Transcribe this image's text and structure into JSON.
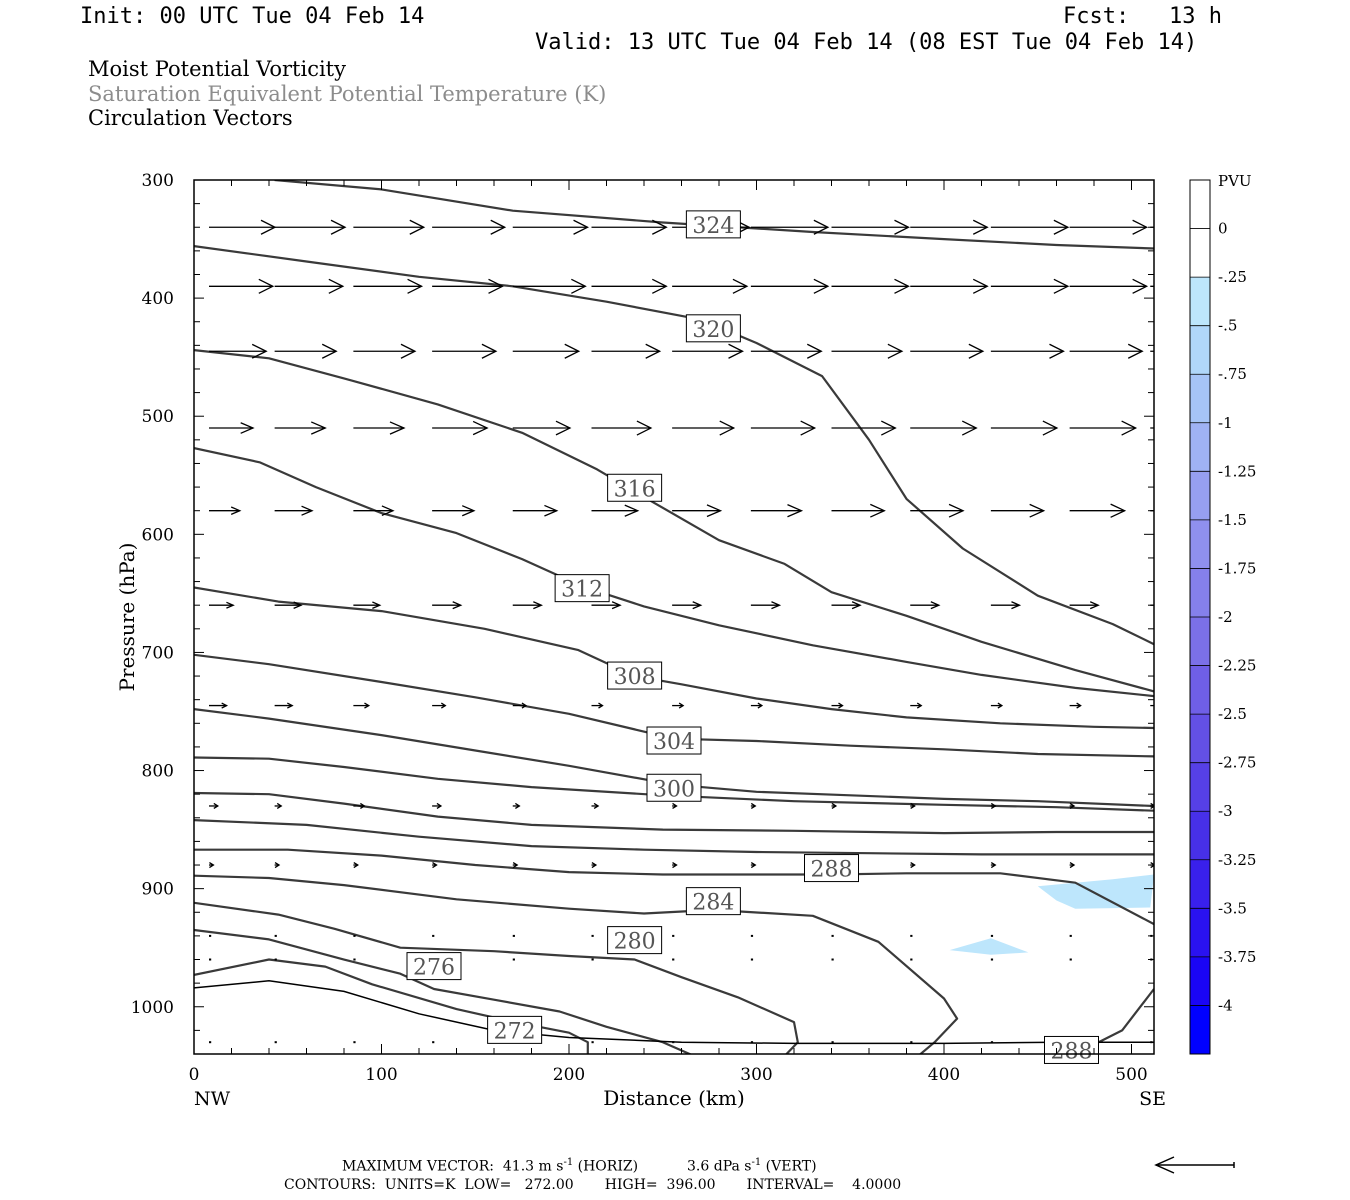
{
  "header": {
    "init": "Init: 00 UTC Tue 04 Feb 14",
    "fcst": "Fcst:   13 h",
    "valid": "Valid: 13 UTC Tue 04 Feb 14 (08 EST Tue 04 Feb 14)",
    "title_lines": [
      "Moist Potential Vorticity",
      "Saturation Equivalent Potential Temperature (K)",
      "Circulation Vectors"
    ]
  },
  "footer": {
    "max_vector_label": "MAXIMUM VECTOR:",
    "max_vector_horiz": "41.3",
    "horiz_units": "m s",
    "horiz_tag": "(HORIZ)",
    "max_vector_vert": "3.6",
    "vert_units": "dPa s",
    "vert_tag": "(VERT)",
    "exponent": "-1",
    "contours_line": "CONTOURS:  UNITS=K  LOW=   272.00       HIGH=  396.00       INTERVAL=    4.0000"
  },
  "chart_data": {
    "type": "contour",
    "xlabel": "Distance (km)",
    "ylabel": "Pressure (hPa)",
    "xlim": [
      0,
      512
    ],
    "ylim": [
      1040,
      300
    ],
    "x_ticks": [
      0,
      100,
      200,
      300,
      400,
      500
    ],
    "y_ticks": [
      300,
      400,
      500,
      600,
      700,
      800,
      900,
      1000
    ],
    "x_endpoints": [
      "NW",
      "SE"
    ],
    "contour_color": "#3a3a3a",
    "contours": [
      {
        "level": 324,
        "label": "324",
        "label_at": [
          277,
          338
        ],
        "points": [
          [
            43,
            300
          ],
          [
            100,
            308
          ],
          [
            170,
            326
          ],
          [
            250,
            336
          ],
          [
            330,
            344
          ],
          [
            400,
            350
          ],
          [
            460,
            355
          ],
          [
            512,
            358
          ]
        ]
      },
      {
        "level": 320,
        "label": "320",
        "label_at": [
          277,
          426
        ],
        "points": [
          [
            0,
            356
          ],
          [
            60,
            369
          ],
          [
            120,
            382
          ],
          [
            170,
            390
          ],
          [
            220,
            403
          ],
          [
            270,
            418
          ],
          [
            300,
            438
          ],
          [
            335,
            466
          ],
          [
            360,
            520
          ],
          [
            380,
            570
          ],
          [
            410,
            612
          ],
          [
            450,
            652
          ],
          [
            490,
            676
          ],
          [
            512,
            693
          ]
        ]
      },
      {
        "level": 316,
        "label": "316",
        "label_at": [
          235,
          561
        ],
        "points": [
          [
            0,
            444
          ],
          [
            40,
            451
          ],
          [
            80,
            468
          ],
          [
            130,
            490
          ],
          [
            175,
            514
          ],
          [
            215,
            545
          ],
          [
            245,
            573
          ],
          [
            280,
            605
          ],
          [
            315,
            625
          ],
          [
            340,
            649
          ],
          [
            380,
            669
          ],
          [
            420,
            691
          ],
          [
            470,
            715
          ],
          [
            512,
            733
          ]
        ]
      },
      {
        "level": 312,
        "label": "312",
        "label_at": [
          207,
          646
        ],
        "points": [
          [
            0,
            527
          ],
          [
            35,
            539
          ],
          [
            65,
            560
          ],
          [
            100,
            582
          ],
          [
            140,
            599
          ],
          [
            175,
            621
          ],
          [
            207,
            644
          ],
          [
            240,
            661
          ],
          [
            280,
            677
          ],
          [
            330,
            694
          ],
          [
            380,
            708
          ],
          [
            420,
            719
          ],
          [
            470,
            730
          ],
          [
            512,
            737
          ]
        ]
      },
      {
        "level": 308,
        "label": "308",
        "label_at": [
          235,
          720
        ],
        "points": [
          [
            0,
            645
          ],
          [
            45,
            657
          ],
          [
            100,
            665
          ],
          [
            155,
            680
          ],
          [
            205,
            698
          ],
          [
            235,
            720
          ],
          [
            260,
            727
          ],
          [
            300,
            739
          ],
          [
            340,
            748
          ],
          [
            380,
            755
          ],
          [
            430,
            760
          ],
          [
            480,
            763
          ],
          [
            512,
            764
          ]
        ]
      },
      {
        "level": 304,
        "label": "304",
        "label_at": [
          256,
          775
        ],
        "points": [
          [
            0,
            702
          ],
          [
            40,
            710
          ],
          [
            100,
            725
          ],
          [
            150,
            738
          ],
          [
            200,
            752
          ],
          [
            256,
            773
          ],
          [
            300,
            775
          ],
          [
            350,
            779
          ],
          [
            400,
            782
          ],
          [
            450,
            786
          ],
          [
            512,
            788
          ]
        ]
      },
      {
        "level": 300,
        "label": "300",
        "label_at": [
          256,
          815
        ],
        "points": [
          [
            0,
            748
          ],
          [
            40,
            756
          ],
          [
            100,
            770
          ],
          [
            150,
            783
          ],
          [
            200,
            796
          ],
          [
            256,
            812
          ],
          [
            300,
            818
          ],
          [
            350,
            821
          ],
          [
            400,
            824
          ],
          [
            450,
            826
          ],
          [
            512,
            830
          ]
        ]
      },
      {
        "level": 296,
        "label": "",
        "label_at": null,
        "points": [
          [
            0,
            789
          ],
          [
            40,
            790
          ],
          [
            80,
            797
          ],
          [
            130,
            807
          ],
          [
            180,
            814
          ],
          [
            250,
            821
          ],
          [
            320,
            826
          ],
          [
            400,
            829
          ],
          [
            460,
            831
          ],
          [
            512,
            834
          ]
        ]
      },
      {
        "level": 292,
        "label": "",
        "label_at": null,
        "points": [
          [
            0,
            819
          ],
          [
            40,
            820
          ],
          [
            80,
            828
          ],
          [
            130,
            839
          ],
          [
            180,
            846
          ],
          [
            250,
            850
          ],
          [
            320,
            851
          ],
          [
            400,
            853
          ],
          [
            460,
            852
          ],
          [
            512,
            852
          ]
        ]
      },
      {
        "level": 292,
        "label": "",
        "label_at": null,
        "points": [
          [
            0,
            842
          ],
          [
            60,
            846
          ],
          [
            120,
            856
          ],
          [
            180,
            864
          ],
          [
            240,
            867
          ],
          [
            300,
            869
          ],
          [
            360,
            870
          ],
          [
            420,
            871
          ],
          [
            512,
            871
          ]
        ]
      },
      {
        "level": 288,
        "label": "288",
        "label_at": [
          340,
          883
        ],
        "points": [
          [
            0,
            867
          ],
          [
            50,
            867
          ],
          [
            100,
            872
          ],
          [
            150,
            880
          ],
          [
            200,
            886
          ],
          [
            250,
            888
          ],
          [
            300,
            888
          ],
          [
            340,
            888
          ],
          [
            380,
            887
          ],
          [
            430,
            887
          ],
          [
            470,
            895
          ],
          [
            512,
            930
          ]
        ]
      },
      {
        "level": 284,
        "label": "284",
        "label_at": [
          277,
          911
        ],
        "points": [
          [
            0,
            889
          ],
          [
            40,
            891
          ],
          [
            80,
            897
          ],
          [
            140,
            909
          ],
          [
            200,
            917
          ],
          [
            240,
            921
          ],
          [
            277,
            918
          ],
          [
            330,
            923
          ],
          [
            365,
            945
          ],
          [
            400,
            993
          ],
          [
            407,
            1010
          ],
          [
            395,
            1030
          ],
          [
            380,
            1050
          ],
          [
            360,
            1063
          ]
        ]
      },
      {
        "level": 280,
        "label": "280",
        "label_at": [
          235,
          944
        ],
        "points": [
          [
            0,
            912
          ],
          [
            45,
            922
          ],
          [
            75,
            934
          ],
          [
            110,
            950
          ],
          [
            160,
            953
          ],
          [
            200,
            957
          ],
          [
            235,
            960
          ],
          [
            260,
            975
          ],
          [
            290,
            992
          ],
          [
            320,
            1013
          ],
          [
            322,
            1030
          ],
          [
            310,
            1050
          ],
          [
            300,
            1063
          ]
        ]
      },
      {
        "level": 276,
        "label": "276",
        "label_at": [
          128,
          966
        ],
        "points": [
          [
            0,
            935
          ],
          [
            40,
            943
          ],
          [
            80,
            960
          ],
          [
            110,
            972
          ],
          [
            128,
            985
          ],
          [
            160,
            994
          ],
          [
            195,
            1004
          ],
          [
            220,
            1017
          ],
          [
            250,
            1030
          ],
          [
            270,
            1044
          ],
          [
            268,
            1060
          ]
        ]
      },
      {
        "level": 272,
        "label": "272",
        "label_at": [
          171,
          1020
        ],
        "points": [
          [
            0,
            973
          ],
          [
            40,
            960
          ],
          [
            70,
            966
          ],
          [
            95,
            981
          ],
          [
            140,
            1002
          ],
          [
            171,
            1013
          ],
          [
            200,
            1022
          ],
          [
            210,
            1030
          ],
          [
            210,
            1042
          ]
        ]
      },
      {
        "level": 288,
        "label": "288",
        "label_at": [
          468,
          1037
        ],
        "points": [
          [
            440,
            1063
          ],
          [
            470,
            1040
          ],
          [
            495,
            1020
          ],
          [
            512,
            985
          ]
        ]
      }
    ],
    "surface_boundary": [
      [
        0,
        984
      ],
      [
        40,
        978
      ],
      [
        80,
        987
      ],
      [
        120,
        1006
      ],
      [
        160,
        1020
      ],
      [
        200,
        1026
      ],
      [
        260,
        1030
      ],
      [
        320,
        1031
      ],
      [
        400,
        1031
      ],
      [
        460,
        1030
      ],
      [
        512,
        1030
      ]
    ],
    "shaded_regions": [
      {
        "value": -0.25,
        "polygon": [
          [
            450,
            898
          ],
          [
            490,
            892
          ],
          [
            512,
            888
          ],
          [
            510,
            916
          ],
          [
            470,
            917
          ],
          [
            460,
            910
          ]
        ]
      },
      {
        "value": -0.25,
        "polygon": [
          [
            403,
            952
          ],
          [
            425,
            942
          ],
          [
            445,
            954
          ],
          [
            425,
            956
          ]
        ]
      }
    ],
    "vectors": {
      "x_positions": [
        8,
        43,
        85,
        127,
        170,
        212,
        255,
        297,
        340,
        382,
        425,
        467,
        510
      ],
      "pressure_levels": [
        340,
        390,
        445,
        510,
        580,
        660,
        745,
        830,
        880,
        940,
        960,
        1030
      ],
      "u_m_s": [
        [
          30,
          32,
          32,
          33,
          34,
          34,
          35,
          35,
          35,
          35,
          35,
          35,
          36
        ],
        [
          29,
          31,
          31,
          32,
          33,
          34,
          34,
          35,
          35,
          35,
          35,
          35,
          36
        ],
        [
          26,
          28,
          28,
          29,
          30,
          31,
          32,
          32,
          32,
          33,
          33,
          33,
          34
        ],
        [
          20,
          23,
          23,
          25,
          26,
          27,
          28,
          29,
          29,
          30,
          30,
          30,
          31
        ],
        [
          14,
          17,
          18,
          19,
          20,
          21,
          22,
          23,
          24,
          24,
          24,
          25,
          25
        ],
        [
          11,
          12,
          12,
          13,
          13,
          13,
          13,
          13,
          13,
          13,
          13,
          13,
          13
        ],
        [
          8,
          8,
          7,
          6,
          6,
          5,
          5,
          5,
          5,
          5,
          5,
          5,
          5
        ],
        [
          4,
          3,
          5,
          4,
          3,
          3,
          2,
          2,
          2,
          2,
          2,
          2,
          2
        ],
        [
          2,
          2,
          2,
          2,
          2,
          2,
          2,
          2,
          2,
          2,
          2,
          2,
          2
        ],
        [
          1,
          1,
          1,
          1,
          1,
          1,
          1,
          1,
          1,
          1,
          1,
          1,
          1
        ],
        [
          1,
          1,
          1,
          1,
          1,
          1,
          1,
          1,
          1,
          1,
          1,
          1,
          1
        ],
        [
          1,
          1,
          1,
          1,
          1,
          1,
          1,
          1,
          1,
          1,
          1,
          1,
          1
        ]
      ]
    },
    "colorbar": {
      "title": "PVU",
      "labels": [
        "0",
        "-.25",
        "-.5",
        "-.75",
        "-1",
        "-1.25",
        "-1.5",
        "-1.75",
        "-2",
        "-2.25",
        "-2.5",
        "-2.75",
        "-3",
        "-3.25",
        "-3.5",
        "-3.75",
        "-4"
      ],
      "colors": [
        "#ffffff",
        "#ffffff",
        "#bde6fc",
        "#b0d7fa",
        "#a6c4f7",
        "#9fb2f4",
        "#969ff1",
        "#8f90ee",
        "#8580eb",
        "#7b70e8",
        "#6f5fe6",
        "#6350e5",
        "#5640e6",
        "#4730e8",
        "#3920ec",
        "#2a12f0",
        "#1a05f5",
        "#0000ff"
      ]
    },
    "reference_vector_arrow": "left"
  }
}
